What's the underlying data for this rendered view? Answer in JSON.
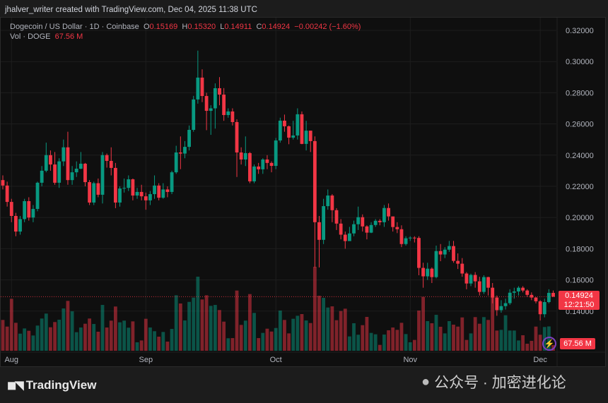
{
  "attribution": "jhalver_writer created with TradingView.com, Dec 04, 2025 11:38 UTC",
  "legend": {
    "symbol": "Dogecoin / US Dollar · 1D · Coinbase",
    "o_label": "O",
    "o": "0.15169",
    "h_label": "H",
    "h": "0.15320",
    "l_label": "L",
    "l": "0.14911",
    "c_label": "C",
    "c": "0.14924",
    "change": "−0.00242 (−1.60%)",
    "vol_label": "Vol · DOGE",
    "vol": "67.56 M"
  },
  "last_price_label": {
    "price": "0.14924",
    "countdown": "12:21:50"
  },
  "volume_label": "67.56 M",
  "footer": {
    "logo_text": "TradingView",
    "watermark": "公众号 · 加密进化论"
  },
  "colors": {
    "up": "#089981",
    "down": "#f23645",
    "background": "#0f0f0f"
  },
  "chart_data": {
    "type": "candlestick",
    "interval": "1D",
    "date_range": [
      "2025-07-30",
      "2025-12-04"
    ],
    "ylim": [
      0.13,
      0.325
    ],
    "y_ticks": [
      "0.32000",
      "0.30000",
      "0.28000",
      "0.26000",
      "0.24000",
      "0.22000",
      "0.20000",
      "0.18000",
      "0.16000",
      "0.14000"
    ],
    "x_ticks": [
      {
        "label": "Aug",
        "date": "2025-08-01"
      },
      {
        "label": "Sep",
        "date": "2025-09-01"
      },
      {
        "label": "Oct",
        "date": "2025-10-01"
      },
      {
        "label": "Nov",
        "date": "2025-11-01"
      },
      {
        "label": "Dec",
        "date": "2025-12-01"
      }
    ],
    "grid": true,
    "ohlc": [
      [
        0.224,
        0.227,
        0.218,
        0.2205
      ],
      [
        0.2205,
        0.223,
        0.207,
        0.21
      ],
      [
        0.21,
        0.212,
        0.197,
        0.201
      ],
      [
        0.201,
        0.203,
        0.188,
        0.191
      ],
      [
        0.191,
        0.201,
        0.189,
        0.199
      ],
      [
        0.199,
        0.212,
        0.197,
        0.2105
      ],
      [
        0.2105,
        0.213,
        0.198,
        0.2
      ],
      [
        0.2,
        0.208,
        0.197,
        0.2055
      ],
      [
        0.2055,
        0.223,
        0.204,
        0.2223
      ],
      [
        0.2223,
        0.233,
        0.22,
        0.23
      ],
      [
        0.23,
        0.248,
        0.229,
        0.24
      ],
      [
        0.24,
        0.243,
        0.23,
        0.234
      ],
      [
        0.234,
        0.242,
        0.221,
        0.2223
      ],
      [
        0.2223,
        0.238,
        0.219,
        0.236
      ],
      [
        0.236,
        0.25,
        0.233,
        0.245
      ],
      [
        0.245,
        0.255,
        0.221,
        0.224
      ],
      [
        0.224,
        0.233,
        0.221,
        0.229
      ],
      [
        0.229,
        0.236,
        0.226,
        0.2313
      ],
      [
        0.2313,
        0.242,
        0.231,
        0.2345
      ],
      [
        0.2345,
        0.235,
        0.22,
        0.2227
      ],
      [
        0.2227,
        0.224,
        0.208,
        0.2096
      ],
      [
        0.2096,
        0.223,
        0.208,
        0.222
      ],
      [
        0.222,
        0.225,
        0.213,
        0.2146
      ],
      [
        0.2146,
        0.242,
        0.209,
        0.24
      ],
      [
        0.24,
        0.241,
        0.232,
        0.2363
      ],
      [
        0.2363,
        0.245,
        0.227,
        0.2318
      ],
      [
        0.2318,
        0.235,
        0.206,
        0.2096
      ],
      [
        0.2096,
        0.22,
        0.207,
        0.2186
      ],
      [
        0.2186,
        0.225,
        0.216,
        0.219
      ],
      [
        0.219,
        0.227,
        0.217,
        0.2245
      ],
      [
        0.2245,
        0.225,
        0.211,
        0.2141
      ],
      [
        0.2141,
        0.219,
        0.212,
        0.2164
      ],
      [
        0.2164,
        0.221,
        0.211,
        0.2136
      ],
      [
        0.2136,
        0.216,
        0.205,
        0.211
      ],
      [
        0.211,
        0.217,
        0.208,
        0.215
      ],
      [
        0.215,
        0.227,
        0.212,
        0.2205
      ],
      [
        0.2205,
        0.222,
        0.211,
        0.2127
      ],
      [
        0.2127,
        0.222,
        0.212,
        0.218
      ],
      [
        0.218,
        0.22,
        0.213,
        0.2164
      ],
      [
        0.2164,
        0.23,
        0.215,
        0.229
      ],
      [
        0.229,
        0.246,
        0.228,
        0.2417
      ],
      [
        0.2417,
        0.252,
        0.231,
        0.241
      ],
      [
        0.241,
        0.249,
        0.238,
        0.2453
      ],
      [
        0.2453,
        0.259,
        0.243,
        0.2562
      ],
      [
        0.2562,
        0.278,
        0.255,
        0.2757
      ],
      [
        0.2757,
        0.307,
        0.273,
        0.2897
      ],
      [
        0.2897,
        0.295,
        0.274,
        0.2779
      ],
      [
        0.2779,
        0.28,
        0.256,
        0.2684
      ],
      [
        0.2684,
        0.272,
        0.253,
        0.27
      ],
      [
        0.27,
        0.286,
        0.257,
        0.2829
      ],
      [
        0.2829,
        0.29,
        0.272,
        0.2788
      ],
      [
        0.2788,
        0.283,
        0.262,
        0.2657
      ],
      [
        0.2657,
        0.27,
        0.264,
        0.268
      ],
      [
        0.268,
        0.27,
        0.259,
        0.2612
      ],
      [
        0.2612,
        0.263,
        0.226,
        0.2417
      ],
      [
        0.2417,
        0.245,
        0.234,
        0.2372
      ],
      [
        0.2372,
        0.252,
        0.233,
        0.2413
      ],
      [
        0.2413,
        0.242,
        0.222,
        0.2232
      ],
      [
        0.2232,
        0.234,
        0.222,
        0.2327
      ],
      [
        0.2327,
        0.235,
        0.228,
        0.2309
      ],
      [
        0.2309,
        0.238,
        0.228,
        0.2372
      ],
      [
        0.2372,
        0.24,
        0.231,
        0.235
      ],
      [
        0.235,
        0.236,
        0.229,
        0.2331
      ],
      [
        0.2331,
        0.251,
        0.231,
        0.2494
      ],
      [
        0.2494,
        0.264,
        0.248,
        0.2621
      ],
      [
        0.2621,
        0.266,
        0.255,
        0.2585
      ],
      [
        0.2585,
        0.259,
        0.247,
        0.2512
      ],
      [
        0.2512,
        0.262,
        0.25,
        0.2526
      ],
      [
        0.2526,
        0.27,
        0.25,
        0.2662
      ],
      [
        0.2662,
        0.268,
        0.247,
        0.2472
      ],
      [
        0.2472,
        0.262,
        0.243,
        0.2557
      ],
      [
        0.2557,
        0.255,
        0.242,
        0.249
      ],
      [
        0.249,
        0.252,
        0.168,
        0.197
      ],
      [
        0.197,
        0.201,
        0.168,
        0.1857
      ],
      [
        0.1857,
        0.212,
        0.183,
        0.2073
      ],
      [
        0.2073,
        0.218,
        0.205,
        0.2141
      ],
      [
        0.2141,
        0.215,
        0.197,
        0.2047
      ],
      [
        0.2047,
        0.206,
        0.192,
        0.1961
      ],
      [
        0.1961,
        0.199,
        0.186,
        0.189
      ],
      [
        0.189,
        0.191,
        0.18,
        0.1849
      ],
      [
        0.1849,
        0.194,
        0.185,
        0.1898
      ],
      [
        0.1898,
        0.198,
        0.188,
        0.1957
      ],
      [
        0.1957,
        0.207,
        0.192,
        0.2002
      ],
      [
        0.2002,
        0.202,
        0.191,
        0.1943
      ],
      [
        0.1943,
        0.195,
        0.186,
        0.1903
      ],
      [
        0.1903,
        0.197,
        0.19,
        0.1952
      ],
      [
        0.1952,
        0.199,
        0.194,
        0.1979
      ],
      [
        0.1979,
        0.199,
        0.195,
        0.197
      ],
      [
        0.197,
        0.208,
        0.194,
        0.2061
      ],
      [
        0.2061,
        0.209,
        0.198,
        0.2007
      ],
      [
        0.2007,
        0.2,
        0.191,
        0.1939
      ],
      [
        0.1939,
        0.197,
        0.19,
        0.1925
      ],
      [
        0.1925,
        0.195,
        0.181,
        0.183
      ],
      [
        0.183,
        0.188,
        0.182,
        0.1867
      ],
      [
        0.1867,
        0.188,
        0.185,
        0.1871
      ],
      [
        0.1871,
        0.188,
        0.184,
        0.1869
      ],
      [
        0.1869,
        0.188,
        0.163,
        0.1677
      ],
      [
        0.1677,
        0.171,
        0.155,
        0.1623
      ],
      [
        0.1623,
        0.171,
        0.16,
        0.1672
      ],
      [
        0.1672,
        0.168,
        0.158,
        0.1618
      ],
      [
        0.1618,
        0.182,
        0.161,
        0.1785
      ],
      [
        0.1785,
        0.183,
        0.172,
        0.1763
      ],
      [
        0.1763,
        0.181,
        0.174,
        0.1794
      ],
      [
        0.1794,
        0.185,
        0.178,
        0.1817
      ],
      [
        0.1817,
        0.185,
        0.171,
        0.1722
      ],
      [
        0.1722,
        0.177,
        0.167,
        0.1704
      ],
      [
        0.1704,
        0.174,
        0.162,
        0.1641
      ],
      [
        0.1641,
        0.165,
        0.154,
        0.1577
      ],
      [
        0.1577,
        0.164,
        0.156,
        0.1632
      ],
      [
        0.1632,
        0.165,
        0.155,
        0.1591
      ],
      [
        0.1591,
        0.162,
        0.15,
        0.1523
      ],
      [
        0.1523,
        0.163,
        0.151,
        0.1618
      ],
      [
        0.1618,
        0.162,
        0.15,
        0.155
      ],
      [
        0.155,
        0.158,
        0.145,
        0.1487
      ],
      [
        0.1487,
        0.15,
        0.137,
        0.1406
      ],
      [
        0.1406,
        0.147,
        0.139,
        0.1432
      ],
      [
        0.1432,
        0.148,
        0.141,
        0.1451
      ],
      [
        0.1451,
        0.154,
        0.144,
        0.1518
      ],
      [
        0.1518,
        0.155,
        0.148,
        0.1526
      ],
      [
        0.1526,
        0.156,
        0.15,
        0.155
      ],
      [
        0.155,
        0.156,
        0.152,
        0.1532
      ],
      [
        0.1532,
        0.154,
        0.149,
        0.1504
      ],
      [
        0.1504,
        0.152,
        0.147,
        0.1487
      ],
      [
        0.1487,
        0.149,
        0.145,
        0.1463
      ],
      [
        0.1463,
        0.147,
        0.134,
        0.138
      ],
      [
        0.138,
        0.148,
        0.136,
        0.1458
      ],
      [
        0.1458,
        0.154,
        0.145,
        0.1517
      ],
      [
        0.15169,
        0.1532,
        0.14911,
        0.14924
      ]
    ],
    "volume_millions": [
      367,
      288,
      619,
      333,
      204,
      266,
      238,
      182,
      300,
      384,
      443,
      280,
      342,
      370,
      504,
      594,
      470,
      221,
      277,
      322,
      384,
      319,
      227,
      546,
      277,
      359,
      527,
      339,
      359,
      275,
      350,
      101,
      123,
      381,
      277,
      233,
      168,
      224,
      109,
      260,
      661,
      563,
      361,
      582,
      633,
      882,
      611,
      661,
      535,
      546,
      485,
      347,
      149,
      151,
      717,
      308,
      359,
      675,
      451,
      151,
      213,
      263,
      229,
      271,
      479,
      367,
      207,
      381,
      417,
      437,
      361,
      330,
      1000,
      655,
      630,
      515,
      529,
      364,
      473,
      501,
      171,
      328,
      191,
      305,
      403,
      213,
      196,
      70,
      193,
      244,
      277,
      249,
      333,
      199,
      101,
      129,
      479,
      641,
      353,
      328,
      428,
      286,
      207,
      353,
      311,
      288,
      397,
      129,
      207,
      401,
      322,
      401,
      367,
      680,
      241,
      249,
      423,
      241,
      241,
      123,
      185,
      84,
      118,
      288,
      191,
      283,
      290,
      67.56
    ]
  }
}
